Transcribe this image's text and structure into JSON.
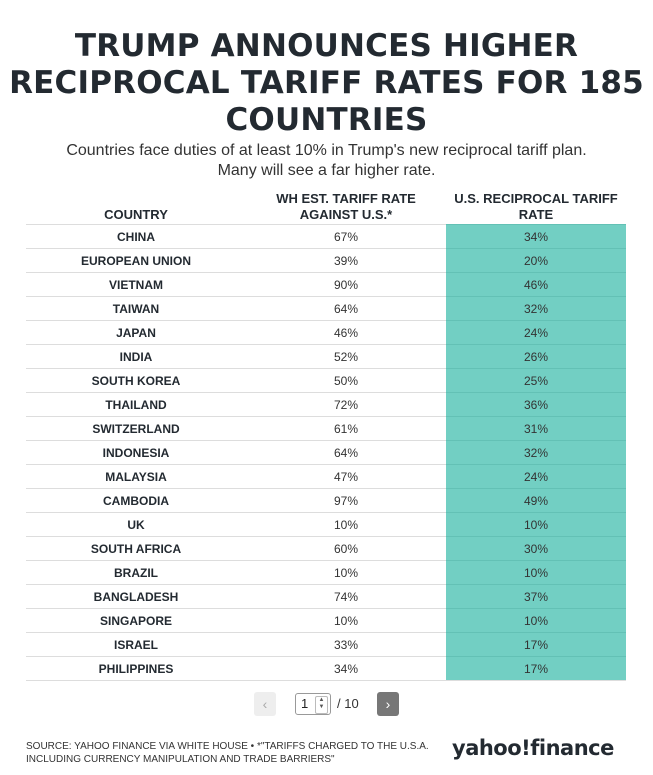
{
  "title": "TRUMP ANNOUNCES HIGHER RECIPROCAL TARIFF RATES FOR 185 COUNTRIES",
  "subtitle_line1": "Countries face duties of at least 10% in Trump's new reciprocal tariff plan.",
  "subtitle_line2": "Many will see a far higher rate.",
  "table": {
    "headers": [
      "COUNTRY",
      "WH EST. TARIFF RATE AGAINST U.S.*",
      "U.S. RECIPROCAL TARIFF RATE"
    ],
    "rows": [
      [
        "CHINA",
        "67%",
        "34%"
      ],
      [
        "EUROPEAN UNION",
        "39%",
        "20%"
      ],
      [
        "VIETNAM",
        "90%",
        "46%"
      ],
      [
        "TAIWAN",
        "64%",
        "32%"
      ],
      [
        "JAPAN",
        "46%",
        "24%"
      ],
      [
        "INDIA",
        "52%",
        "26%"
      ],
      [
        "SOUTH KOREA",
        "50%",
        "25%"
      ],
      [
        "THAILAND",
        "72%",
        "36%"
      ],
      [
        "SWITZERLAND",
        "61%",
        "31%"
      ],
      [
        "INDONESIA",
        "64%",
        "32%"
      ],
      [
        "MALAYSIA",
        "47%",
        "24%"
      ],
      [
        "CAMBODIA",
        "97%",
        "49%"
      ],
      [
        "UK",
        "10%",
        "10%"
      ],
      [
        "SOUTH AFRICA",
        "60%",
        "30%"
      ],
      [
        "BRAZIL",
        "10%",
        "10%"
      ],
      [
        "BANGLADESH",
        "74%",
        "37%"
      ],
      [
        "SINGAPORE",
        "10%",
        "10%"
      ],
      [
        "ISRAEL",
        "33%",
        "17%"
      ],
      [
        "PHILIPPINES",
        "34%",
        "17%"
      ]
    ]
  },
  "pagination": {
    "prev_label": "‹",
    "next_label": "›",
    "current_page": "1",
    "total": "/ 10"
  },
  "source": "SOURCE: YAHOO FINANCE VIA WHITE HOUSE • *\"TARIFFS CHARGED TO THE U.S.A. INCLUDING CURRENCY MANIPULATION AND TRADE BARRIERS\"",
  "logo": "yahoo!finance",
  "colors": {
    "reciprocal_column": "#72cfc3",
    "title": "#232a31"
  }
}
